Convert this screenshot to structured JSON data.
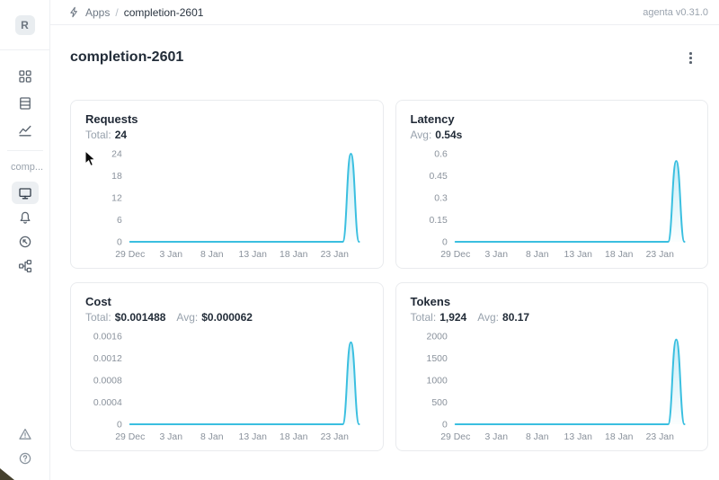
{
  "header": {
    "breadcrumb": {
      "icon": "bolt-icon",
      "apps_label": "Apps",
      "separator": "/",
      "current": "completion-2601"
    },
    "version_label": "agenta v0.31.0"
  },
  "page": {
    "title": "completion-2601"
  },
  "sidebar": {
    "avatar_letter": "R",
    "workspace_label": "comp...",
    "nav_top_icons": [
      "grid-icon",
      "rows-icon",
      "line-chart-icon"
    ],
    "nav_app_icons": [
      "monitor-icon",
      "bell-icon",
      "gauge-icon",
      "tree-icon"
    ],
    "active_icon": "monitor-icon",
    "nav_bottom_icons": [
      "warning-triangle-icon",
      "help-icon"
    ]
  },
  "colors": {
    "accent_line": "#3ABFE0",
    "card_border": "#e9ebee",
    "text_dark": "#222c38",
    "text_gray": "#98a2ad"
  },
  "chart_data": [
    {
      "id": "requests",
      "type": "area",
      "title": "Requests",
      "stats": [
        {
          "label": "Total:",
          "value": "24"
        }
      ],
      "line_color": "#3ABFE0",
      "ylim": [
        0,
        24
      ],
      "y_tick_values": [
        0,
        6,
        12,
        18,
        24
      ],
      "y_tick_labels": [
        "0",
        "6",
        "12",
        "18",
        "24"
      ],
      "x_tick_indices": [
        0,
        5,
        10,
        15,
        20,
        25
      ],
      "x_tick_labels": [
        "29 Dec",
        "3 Jan",
        "8 Jan",
        "13 Jan",
        "18 Jan",
        "23 Jan"
      ],
      "values": [
        0,
        0,
        0,
        0,
        0,
        0,
        0,
        0,
        0,
        0,
        0,
        0,
        0,
        0,
        0,
        0,
        0,
        0,
        0,
        0,
        0,
        0,
        0,
        0,
        0,
        0,
        0,
        24,
        0
      ]
    },
    {
      "id": "latency",
      "type": "area",
      "title": "Latency",
      "stats": [
        {
          "label": "Avg:",
          "value": "0.54s"
        }
      ],
      "line_color": "#3ABFE0",
      "ylim": [
        0,
        0.6
      ],
      "y_tick_values": [
        0,
        0.15,
        0.3,
        0.45,
        0.6
      ],
      "y_tick_labels": [
        "0",
        "0.15",
        "0.3",
        "0.45",
        "0.6"
      ],
      "x_tick_indices": [
        0,
        5,
        10,
        15,
        20,
        25
      ],
      "x_tick_labels": [
        "29 Dec",
        "3 Jan",
        "8 Jan",
        "13 Jan",
        "18 Jan",
        "23 Jan"
      ],
      "values": [
        0,
        0,
        0,
        0,
        0,
        0,
        0,
        0,
        0,
        0,
        0,
        0,
        0,
        0,
        0,
        0,
        0,
        0,
        0,
        0,
        0,
        0,
        0,
        0,
        0,
        0,
        0,
        0.55,
        0
      ]
    },
    {
      "id": "cost",
      "type": "area",
      "title": "Cost",
      "stats": [
        {
          "label": "Total:",
          "value": "$0.001488"
        },
        {
          "label": "Avg:",
          "value": "$0.000062"
        }
      ],
      "line_color": "#3ABFE0",
      "ylim": [
        0,
        0.0016
      ],
      "y_tick_values": [
        0,
        0.0004,
        0.0008,
        0.0012,
        0.0016
      ],
      "y_tick_labels": [
        "0",
        "0.0004",
        "0.0008",
        "0.0012",
        "0.0016"
      ],
      "x_tick_indices": [
        0,
        5,
        10,
        15,
        20,
        25
      ],
      "x_tick_labels": [
        "29 Dec",
        "3 Jan",
        "8 Jan",
        "13 Jan",
        "18 Jan",
        "23 Jan"
      ],
      "values": [
        0,
        0,
        0,
        0,
        0,
        0,
        0,
        0,
        0,
        0,
        0,
        0,
        0,
        0,
        0,
        0,
        0,
        0,
        0,
        0,
        0,
        0,
        0,
        0,
        0,
        0,
        0,
        0.001488,
        0
      ]
    },
    {
      "id": "tokens",
      "type": "area",
      "title": "Tokens",
      "stats": [
        {
          "label": "Total:",
          "value": "1,924"
        },
        {
          "label": "Avg:",
          "value": "80.17"
        }
      ],
      "line_color": "#3ABFE0",
      "ylim": [
        0,
        2000
      ],
      "y_tick_values": [
        0,
        500,
        1000,
        1500,
        2000
      ],
      "y_tick_labels": [
        "0",
        "500",
        "1000",
        "1500",
        "2000"
      ],
      "x_tick_indices": [
        0,
        5,
        10,
        15,
        20,
        25
      ],
      "x_tick_labels": [
        "29 Dec",
        "3 Jan",
        "8 Jan",
        "13 Jan",
        "18 Jan",
        "23 Jan"
      ],
      "values": [
        0,
        0,
        0,
        0,
        0,
        0,
        0,
        0,
        0,
        0,
        0,
        0,
        0,
        0,
        0,
        0,
        0,
        0,
        0,
        0,
        0,
        0,
        0,
        0,
        0,
        0,
        0,
        1924,
        0
      ]
    }
  ]
}
